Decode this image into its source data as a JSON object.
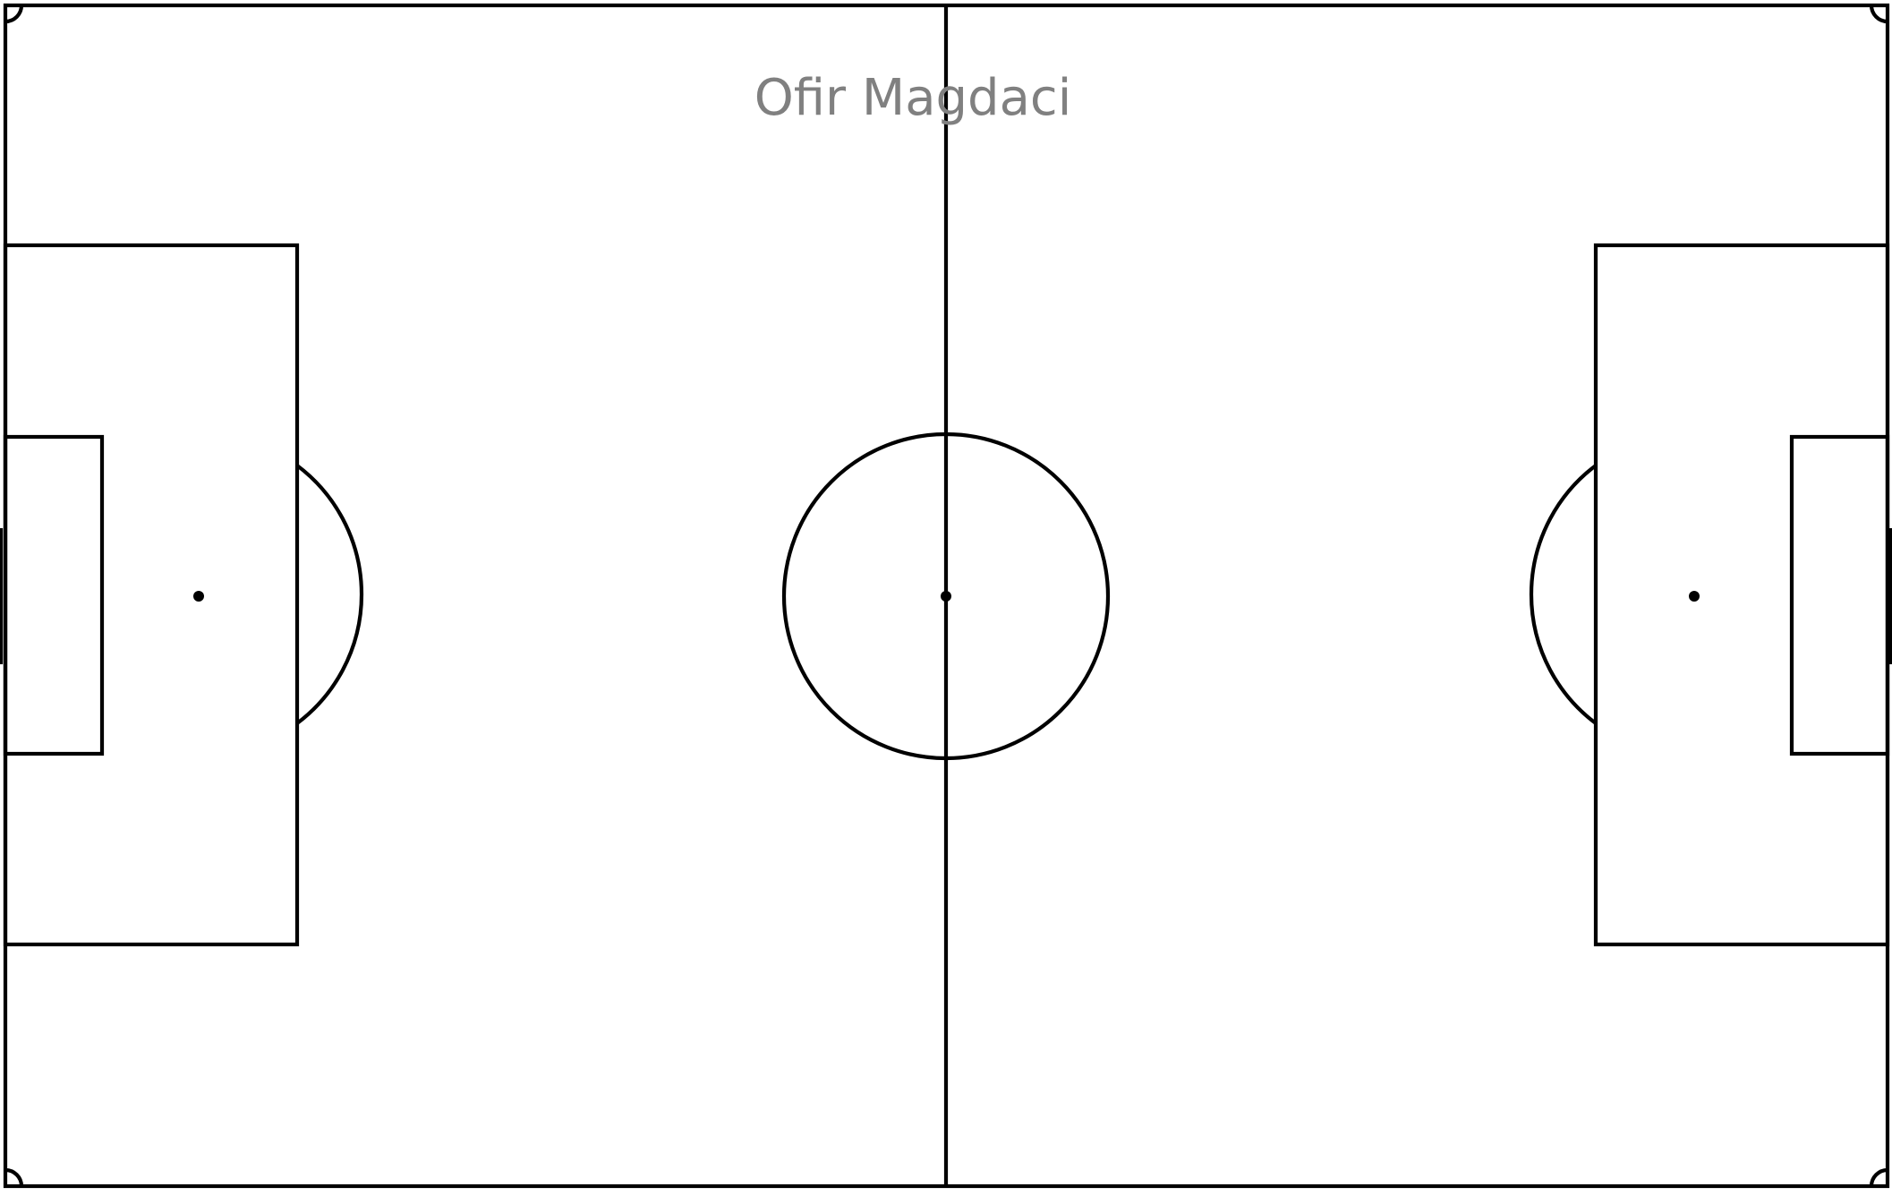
{
  "title": "Ofir Magdaci",
  "colors": {
    "background": "#ffffff",
    "pitch_lines": "#000000",
    "title_text": "#808080"
  }
}
